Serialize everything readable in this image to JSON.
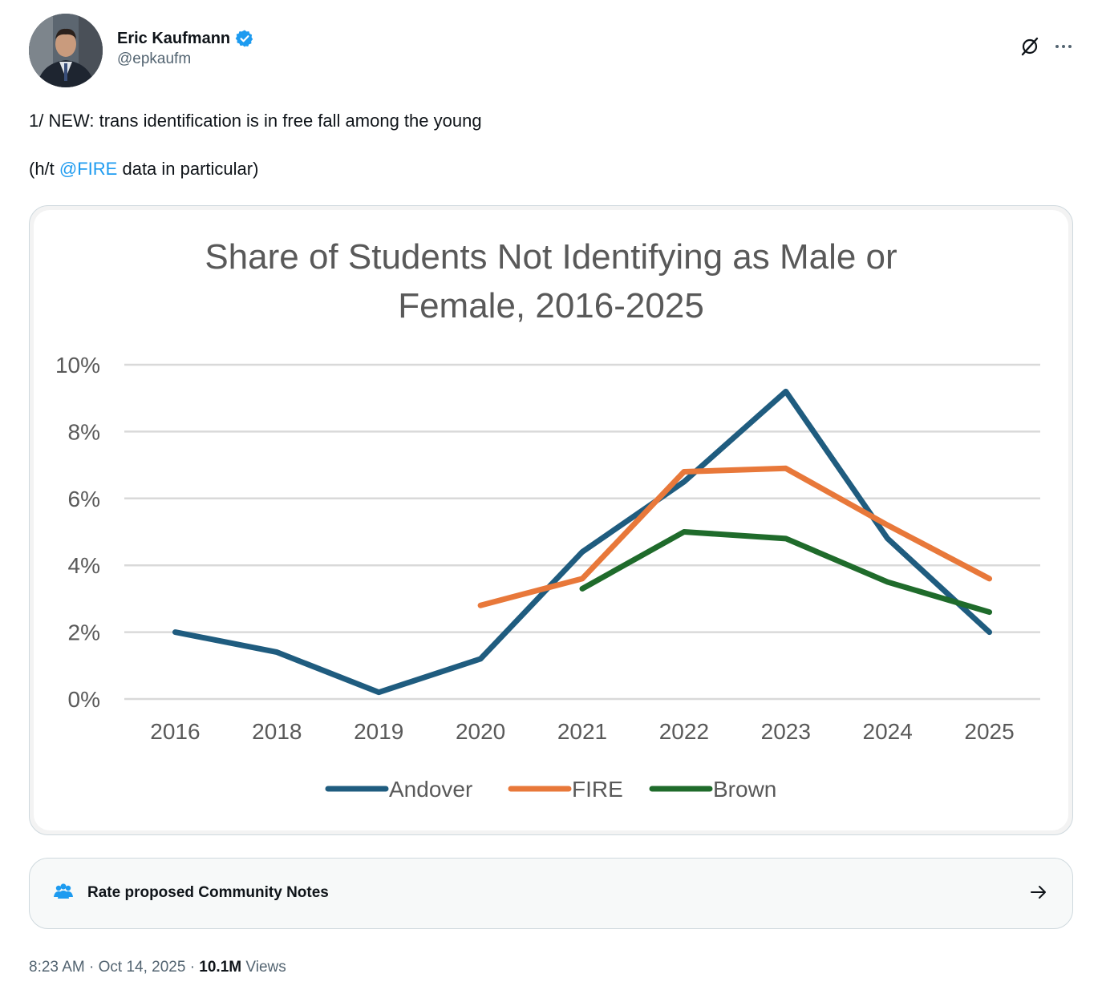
{
  "author": {
    "name": "Eric Kaufmann",
    "handle": "@epkaufm",
    "verified_color": "#1d9bf0"
  },
  "icons": {
    "grok": "grok-icon",
    "more": "more-icon",
    "verified": "verified-badge-icon",
    "notes": "community-notes-icon",
    "arrow": "arrow-right-icon"
  },
  "tweet": {
    "line1": "1/ NEW: trans identification is in free fall among the young",
    "line2_prefix": "(h/t ",
    "line2_mention": "@FIRE",
    "line2_suffix": " data in particular)"
  },
  "chart_data": {
    "type": "line",
    "title_line1": "Share of Students Not Identifying as Male or",
    "title_line2": "Female, 2016-2025",
    "categories": [
      "2016",
      "2018",
      "2019",
      "2020",
      "2021",
      "2022",
      "2023",
      "2024",
      "2025"
    ],
    "y_ticks": [
      "0%",
      "2%",
      "4%",
      "6%",
      "8%",
      "10%"
    ],
    "ylim": [
      0,
      10
    ],
    "grid": true,
    "legend_position": "bottom",
    "series": [
      {
        "name": "Andover",
        "color": "#1f5c7f",
        "values": [
          2.0,
          1.4,
          0.2,
          1.2,
          4.4,
          6.5,
          9.2,
          4.8,
          2.0
        ]
      },
      {
        "name": "FIRE",
        "color": "#e8783a",
        "values": [
          null,
          null,
          null,
          2.8,
          3.6,
          6.8,
          6.9,
          5.2,
          3.6
        ]
      },
      {
        "name": "Brown",
        "color": "#1f6b2b",
        "values": [
          null,
          null,
          null,
          null,
          3.3,
          5.0,
          4.8,
          3.5,
          2.6
        ]
      }
    ]
  },
  "community_notes": {
    "label": "Rate proposed Community Notes"
  },
  "meta": {
    "time": "8:23 AM",
    "date": "Oct 14, 2025",
    "views_count": "10.1M",
    "views_label": "Views"
  }
}
